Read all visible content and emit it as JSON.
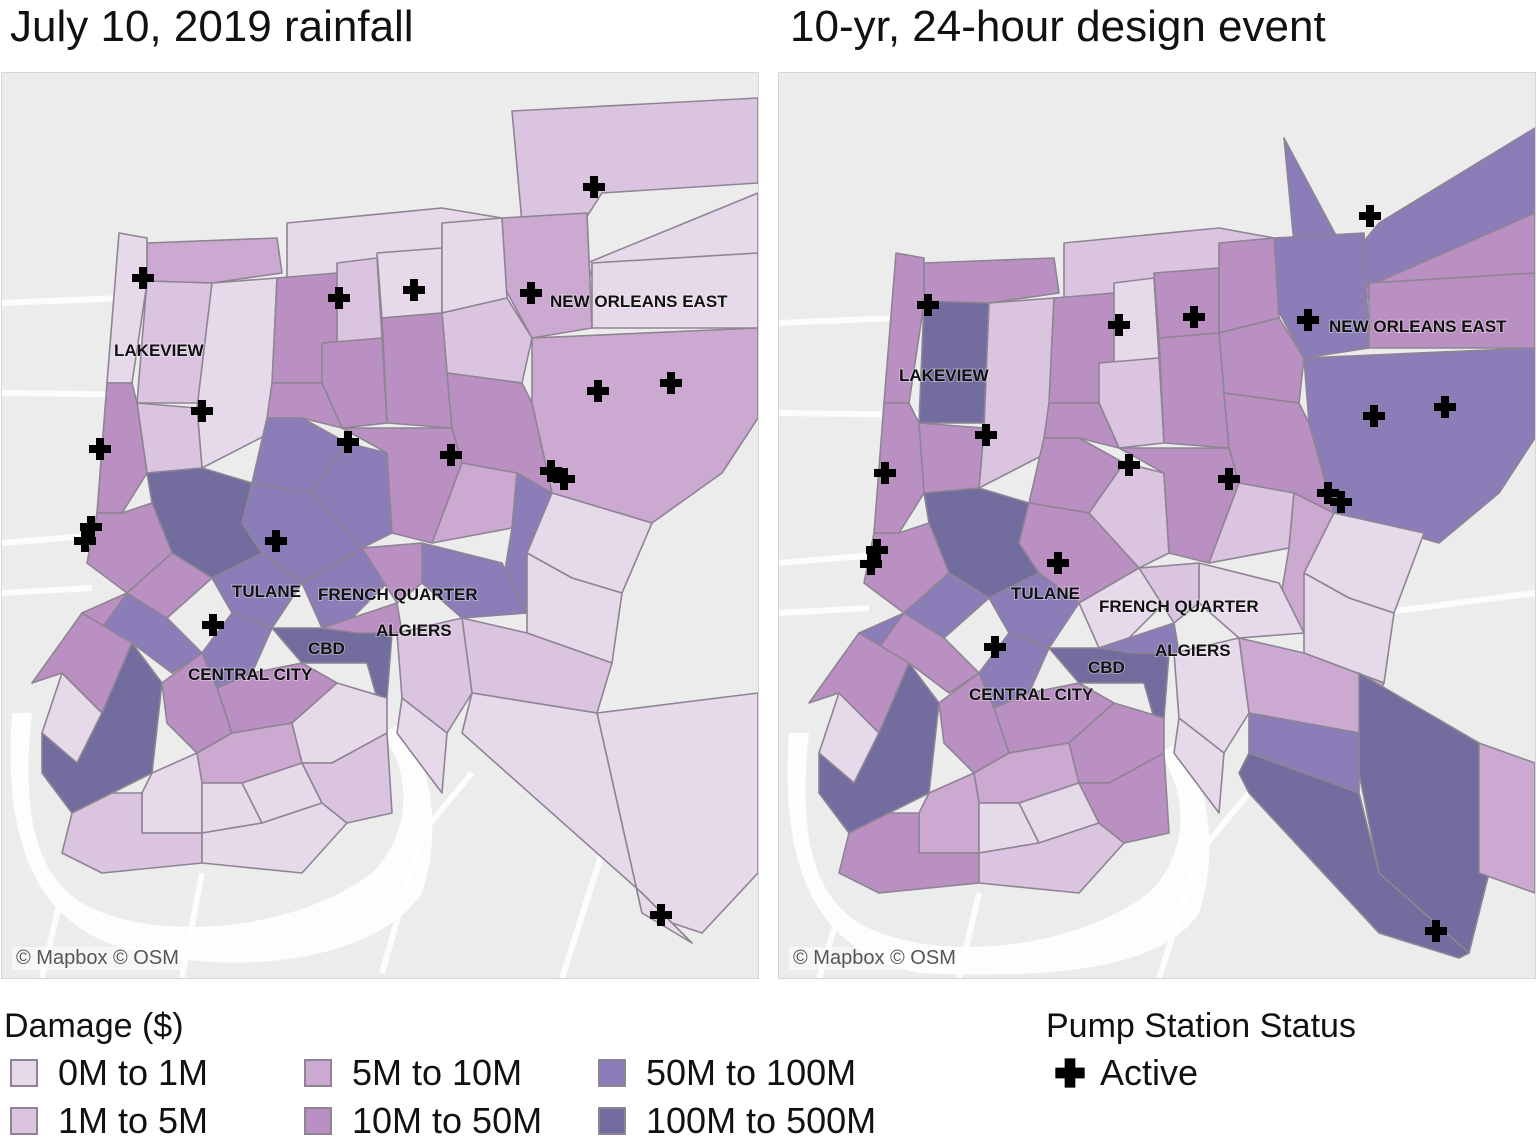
{
  "panels": [
    {
      "title": "July 10, 2019 rainfall",
      "attribution": "© Mapbox © OSM",
      "labels": {
        "lakeview": "LAKEVIEW",
        "new_orleans_east": "NEW ORLEANS EAST",
        "tulane": "TULANE",
        "french_quarter": "FRENCH QUARTER",
        "algiers": "ALGIERS",
        "cbd": "CBD",
        "central_city": "CENTRAL CITY"
      }
    },
    {
      "title": "10-yr, 24-hour design event",
      "attribution": "© Mapbox © OSM",
      "labels": {
        "lakeview": "LAKEVIEW",
        "new_orleans_east": "NEW ORLEANS EAST",
        "tulane": "TULANE",
        "french_quarter": "FRENCH QUARTER",
        "algiers": "ALGIERS",
        "cbd": "CBD",
        "central_city": "CENTRAL CITY"
      }
    }
  ],
  "legend": {
    "damage_title": "Damage ($)",
    "classes": [
      {
        "label": "0M to 1M",
        "color": "#e6d9ea"
      },
      {
        "label": "1M to 5M",
        "color": "#dbc4df"
      },
      {
        "label": "5M to 10M",
        "color": "#cca9d1"
      },
      {
        "label": "10M to 50M",
        "color": "#ba90c2"
      },
      {
        "label": "50M to 100M",
        "color": "#8a7db8"
      },
      {
        "label": "100M to 500M",
        "color": "#736c9e"
      }
    ],
    "pump_title": "Pump Station Status",
    "pump_items": [
      {
        "label": "Active",
        "icon": "plus-cross-icon"
      }
    ]
  }
}
